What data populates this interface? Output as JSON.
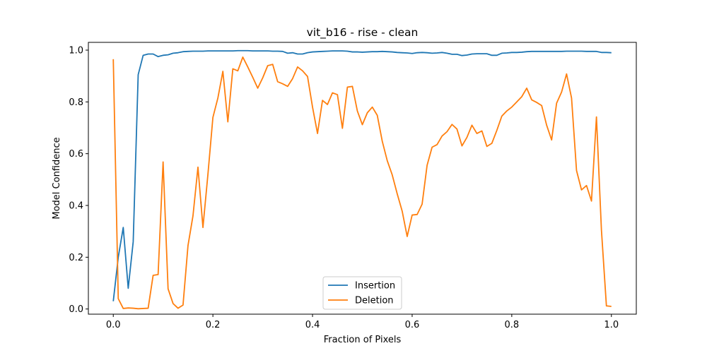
{
  "chart_data": {
    "type": "line",
    "title": "vit_b16 - rise - clean",
    "xlabel": "Fraction of Pixels",
    "ylabel": "Model Confidence",
    "xlim": [
      -0.05,
      1.05
    ],
    "ylim": [
      -0.02,
      1.03
    ],
    "xticks": [
      0.0,
      0.2,
      0.4,
      0.6,
      0.8,
      1.0
    ],
    "xtick_labels": [
      "0.0",
      "0.2",
      "0.4",
      "0.6",
      "0.8",
      "1.0"
    ],
    "yticks": [
      0.0,
      0.2,
      0.4,
      0.6,
      0.8,
      1.0
    ],
    "ytick_labels": [
      "0.0",
      "0.2",
      "0.4",
      "0.6",
      "0.8",
      "1.0"
    ],
    "grid": false,
    "legend_position": "lower-center",
    "colors": {
      "Insertion": "#1f77b4",
      "Deletion": "#ff7f0e"
    },
    "series": [
      {
        "name": "Insertion",
        "x": [
          0.0,
          0.01,
          0.02,
          0.03,
          0.04,
          0.05,
          0.06,
          0.07,
          0.08,
          0.09,
          0.1,
          0.11,
          0.12,
          0.13,
          0.14,
          0.15,
          0.16,
          0.17,
          0.18,
          0.19,
          0.2,
          0.21,
          0.22,
          0.23,
          0.24,
          0.25,
          0.26,
          0.27,
          0.28,
          0.29,
          0.3,
          0.31,
          0.32,
          0.33,
          0.34,
          0.35,
          0.36,
          0.37,
          0.38,
          0.39,
          0.4,
          0.41,
          0.42,
          0.43,
          0.44,
          0.45,
          0.46,
          0.47,
          0.48,
          0.49,
          0.5,
          0.51,
          0.52,
          0.53,
          0.54,
          0.55,
          0.56,
          0.57,
          0.58,
          0.59,
          0.6,
          0.61,
          0.62,
          0.63,
          0.64,
          0.65,
          0.66,
          0.67,
          0.68,
          0.69,
          0.7,
          0.71,
          0.72,
          0.73,
          0.74,
          0.75,
          0.76,
          0.77,
          0.78,
          0.79,
          0.8,
          0.81,
          0.82,
          0.83,
          0.84,
          0.85,
          0.86,
          0.87,
          0.88,
          0.89,
          0.9,
          0.91,
          0.92,
          0.93,
          0.94,
          0.95,
          0.96,
          0.97,
          0.98,
          0.99,
          1.0
        ],
        "values": [
          0.03,
          0.2,
          0.315,
          0.08,
          0.26,
          0.905,
          0.98,
          0.985,
          0.985,
          0.975,
          0.98,
          0.982,
          0.988,
          0.99,
          0.994,
          0.995,
          0.996,
          0.996,
          0.996,
          0.997,
          0.997,
          0.997,
          0.997,
          0.997,
          0.997,
          0.998,
          0.998,
          0.998,
          0.997,
          0.997,
          0.997,
          0.997,
          0.996,
          0.996,
          0.995,
          0.988,
          0.99,
          0.985,
          0.985,
          0.99,
          0.993,
          0.994,
          0.995,
          0.996,
          0.997,
          0.997,
          0.997,
          0.996,
          0.993,
          0.993,
          0.992,
          0.993,
          0.994,
          0.994,
          0.995,
          0.994,
          0.993,
          0.991,
          0.99,
          0.989,
          0.987,
          0.99,
          0.991,
          0.99,
          0.988,
          0.989,
          0.991,
          0.988,
          0.984,
          0.984,
          0.979,
          0.981,
          0.985,
          0.986,
          0.986,
          0.986,
          0.98,
          0.98,
          0.988,
          0.989,
          0.991,
          0.991,
          0.992,
          0.994,
          0.995,
          0.995,
          0.995,
          0.995,
          0.995,
          0.995,
          0.995,
          0.996,
          0.996,
          0.996,
          0.996,
          0.995,
          0.995,
          0.995,
          0.991,
          0.991,
          0.99
        ]
      },
      {
        "name": "Deletion",
        "x": [
          0.0,
          0.01,
          0.02,
          0.03,
          0.04,
          0.05,
          0.06,
          0.07,
          0.08,
          0.09,
          0.1,
          0.11,
          0.12,
          0.13,
          0.14,
          0.15,
          0.16,
          0.17,
          0.18,
          0.19,
          0.2,
          0.21,
          0.22,
          0.23,
          0.24,
          0.25,
          0.26,
          0.27,
          0.28,
          0.29,
          0.3,
          0.31,
          0.32,
          0.33,
          0.34,
          0.35,
          0.36,
          0.37,
          0.38,
          0.39,
          0.4,
          0.41,
          0.42,
          0.43,
          0.44,
          0.45,
          0.46,
          0.47,
          0.48,
          0.49,
          0.5,
          0.51,
          0.52,
          0.53,
          0.54,
          0.55,
          0.56,
          0.57,
          0.58,
          0.59,
          0.6,
          0.61,
          0.62,
          0.63,
          0.64,
          0.65,
          0.66,
          0.67,
          0.68,
          0.69,
          0.7,
          0.71,
          0.72,
          0.73,
          0.74,
          0.75,
          0.76,
          0.77,
          0.78,
          0.79,
          0.8,
          0.81,
          0.82,
          0.83,
          0.84,
          0.85,
          0.86,
          0.87,
          0.88,
          0.89,
          0.9,
          0.91,
          0.92,
          0.93,
          0.94,
          0.95,
          0.96,
          0.97,
          0.98,
          0.99,
          1.0
        ],
        "values": [
          0.965,
          0.04,
          0.002,
          0.004,
          0.003,
          0.001,
          0.002,
          0.003,
          0.13,
          0.133,
          0.568,
          0.078,
          0.021,
          0.003,
          0.015,
          0.245,
          0.36,
          0.548,
          0.315,
          0.52,
          0.74,
          0.815,
          0.918,
          0.723,
          0.928,
          0.92,
          0.973,
          0.935,
          0.895,
          0.853,
          0.893,
          0.94,
          0.945,
          0.878,
          0.87,
          0.86,
          0.89,
          0.935,
          0.92,
          0.898,
          0.78,
          0.678,
          0.806,
          0.79,
          0.835,
          0.828,
          0.698,
          0.857,
          0.86,
          0.765,
          0.712,
          0.758,
          0.78,
          0.748,
          0.648,
          0.573,
          0.518,
          0.445,
          0.378,
          0.28,
          0.363,
          0.365,
          0.405,
          0.555,
          0.625,
          0.635,
          0.668,
          0.685,
          0.713,
          0.695,
          0.63,
          0.663,
          0.71,
          0.678,
          0.688,
          0.628,
          0.64,
          0.69,
          0.745,
          0.765,
          0.78,
          0.8,
          0.82,
          0.853,
          0.808,
          0.798,
          0.786,
          0.71,
          0.653,
          0.795,
          0.838,
          0.908,
          0.815,
          0.535,
          0.46,
          0.477,
          0.417,
          0.742,
          0.305,
          0.012,
          0.01
        ]
      }
    ]
  }
}
